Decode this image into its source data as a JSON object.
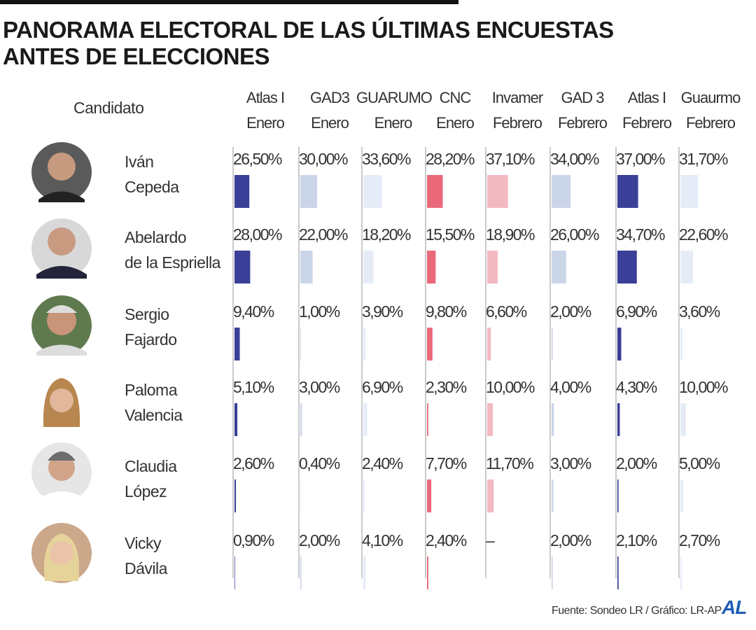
{
  "chart_data": {
    "type": "bar-table",
    "title": "PANORAMA ELECTORAL DE LAS ÚLTIMAS ENCUESTAS\nANTES DE ELECCIONES",
    "category_header": "Candidato",
    "categories": [
      "Iván\nCepeda",
      "Abelardo\nde la Espriella",
      "Sergio\nFajardo",
      "Paloma\nValencia",
      "Claudia\nLópez",
      "Vicky\nDávila"
    ],
    "series": [
      {
        "name": "Atlas I\nEnero",
        "color": "#3a3f98",
        "values": [
          26.5,
          28,
          9.4,
          5.1,
          2.6,
          0.9
        ],
        "value_labels": [
          "26,50%",
          "28,00%",
          "9,40%",
          "5,10%",
          "2,60%",
          "0,90%"
        ]
      },
      {
        "name": "GAD3\nEnero",
        "color": "#cad5e8",
        "values": [
          30,
          22,
          1,
          3,
          0.4,
          2
        ],
        "value_labels": [
          "30,00%",
          "22,00%",
          "1,00%",
          "3,00%",
          "0,40%",
          "2,00%"
        ]
      },
      {
        "name": "GUARUMO\nEnero",
        "color": "#e6ecf7",
        "values": [
          33.6,
          18.2,
          3.9,
          6.9,
          2.4,
          4.1
        ],
        "value_labels": [
          "33,60%",
          "18,20%",
          "3,90%",
          "6,90%",
          "2,40%",
          "4,10%"
        ]
      },
      {
        "name": "CNC\nEnero",
        "color": "#e9697b",
        "values": [
          28.2,
          15.5,
          9.8,
          2.3,
          7.7,
          2.4
        ],
        "value_labels": [
          "28,20%",
          "15,50%",
          "9,80%",
          "2,30%",
          "7,70%",
          "2,40%"
        ]
      },
      {
        "name": "Invamer\nFebrero",
        "color": "#f3b9c1",
        "values": [
          37.1,
          18.9,
          6.6,
          10,
          11.7,
          null
        ],
        "value_labels": [
          "37,10%",
          "18,90%",
          "6,60%",
          "10,00%",
          "11,70%",
          "–"
        ]
      },
      {
        "name": "GAD 3\nFebrero",
        "color": "#cad5e8",
        "values": [
          34,
          26,
          2,
          4,
          3,
          2
        ],
        "value_labels": [
          "34,00%",
          "26,00%",
          "2,00%",
          "4,00%",
          "3,00%",
          "2,00%"
        ]
      },
      {
        "name": "Atlas I\nFebrero",
        "color": "#3a3f98",
        "values": [
          37,
          34.7,
          6.9,
          4.3,
          2,
          2.1
        ],
        "value_labels": [
          "37,00%",
          "34,70%",
          "6,90%",
          "4,30%",
          "2,00%",
          "2,10%"
        ]
      },
      {
        "name": "Guaurmo\nFebrero",
        "color": "#e6ecf7",
        "values": [
          31.7,
          22.6,
          3.6,
          10,
          5,
          2.7
        ],
        "value_labels": [
          "31,70%",
          "22,60%",
          "3,60%",
          "10,00%",
          "5,00%",
          "2,70%"
        ]
      }
    ],
    "source": "Fuente: Sondeo LR / Gráfico: LR-AP",
    "logo": "AL"
  }
}
